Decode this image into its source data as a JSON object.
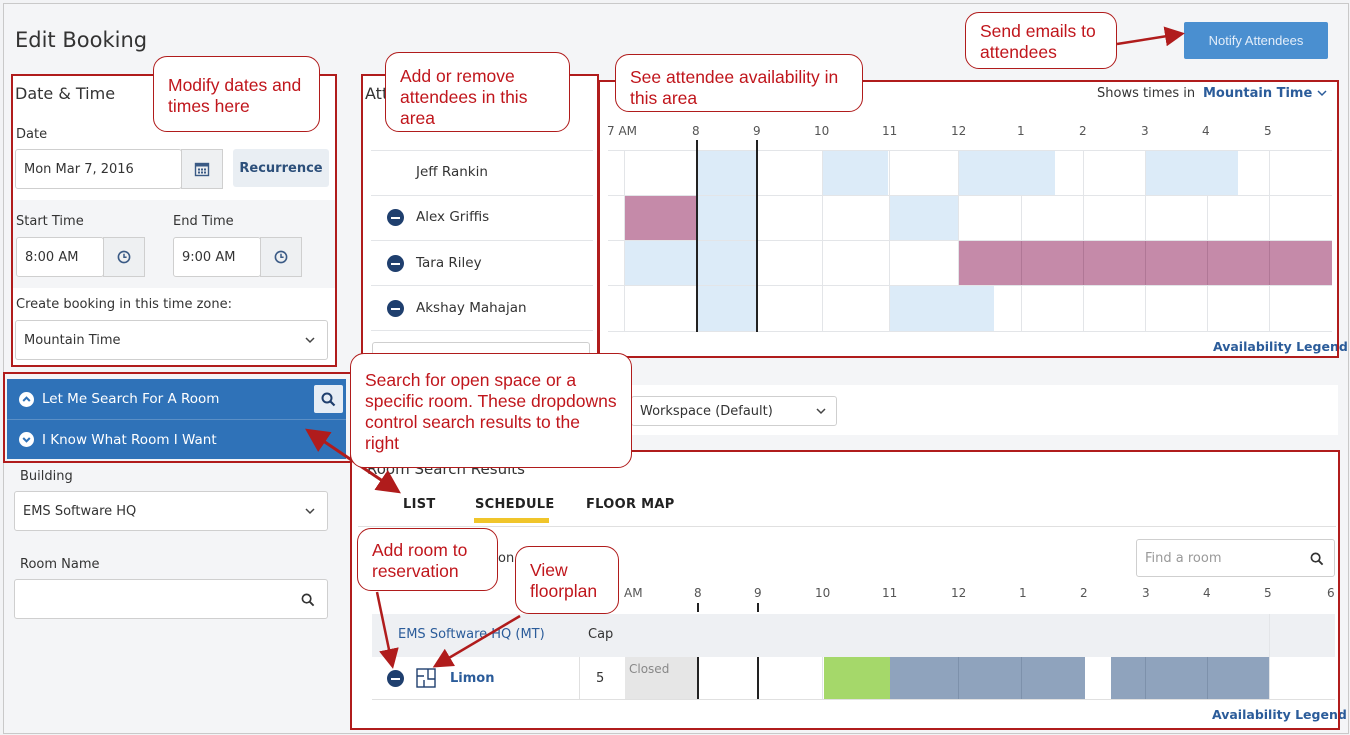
{
  "header": {
    "title": "Edit Booking",
    "notify_label": "Notify Attendees"
  },
  "date_time": {
    "heading": "Date & Time",
    "date_label": "Date",
    "date_value": "Mon Mar 7, 2016",
    "recurrence_label": "Recurrence",
    "start_label": "Start Time",
    "start_value": "8:00 AM",
    "end_label": "End Time",
    "end_value": "9:00 AM",
    "tz_label": "Create booking in this time zone:",
    "tz_value": "Mountain Time"
  },
  "attendees": {
    "heading_partial": "Att",
    "list": [
      {
        "name": "Jeff Rankin",
        "removable": false
      },
      {
        "name": "Alex Griffis",
        "removable": true
      },
      {
        "name": "Tara Riley",
        "removable": true
      },
      {
        "name": "Akshay Mahajan",
        "removable": true
      }
    ]
  },
  "availability": {
    "shows_times_label": "Shows times in",
    "timezone": "Mountain Time",
    "hours": [
      "7 AM",
      "8",
      "9",
      "10",
      "11",
      "12",
      "1",
      "2",
      "3",
      "4",
      "5"
    ],
    "legend_link": "Availability Legend",
    "colors": {
      "free_tentative": "#dcebf8",
      "busy": "#c58aa9",
      "now_line": "#222222"
    }
  },
  "search": {
    "let_me_search": "Let Me Search For A Room",
    "i_know": "I Know What Room I Want",
    "building_label": "Building",
    "building_value": "EMS Software HQ",
    "room_name_label": "Room Name",
    "setup_value": "Workspace (Default)"
  },
  "results": {
    "heading_partial": "Room Search Results",
    "tabs": [
      "LIST",
      "SCHEDULE",
      "FLOOR MAP"
    ],
    "active_tab": "SCHEDULE",
    "find_placeholder": "Find a room",
    "partial_label": "on",
    "hours": [
      "AM",
      "8",
      "9",
      "10",
      "11",
      "12",
      "1",
      "2",
      "3",
      "4",
      "5",
      "6"
    ],
    "group_name": "EMS Software HQ (MT)",
    "cap_label": "Cap",
    "room": {
      "name": "Limon",
      "cap": "5",
      "closed_label": "Closed"
    },
    "legend_link": "Availability Legend",
    "colors": {
      "available": "#a5d86a",
      "booked": "#8fa3bd",
      "closed": "#e6e6e6"
    }
  },
  "callouts": {
    "modify": "Modify dates and times here",
    "add_remove": "Add or remove attendees in this area",
    "see_avail": "See attendee availability in this area",
    "send_emails": "Send emails to attendees",
    "search_open": "Search for open space or a specific room. These dropdowns control search results to the right",
    "add_room": "Add room to reservation",
    "view_floorplan": "View floorplan"
  },
  "icons": [
    "calendar-icon",
    "clock-icon",
    "chevron-down-icon",
    "search-icon",
    "chevron-up-circle-icon",
    "chevron-down-circle-icon",
    "minus-circle-icon",
    "floorplan-icon"
  ]
}
